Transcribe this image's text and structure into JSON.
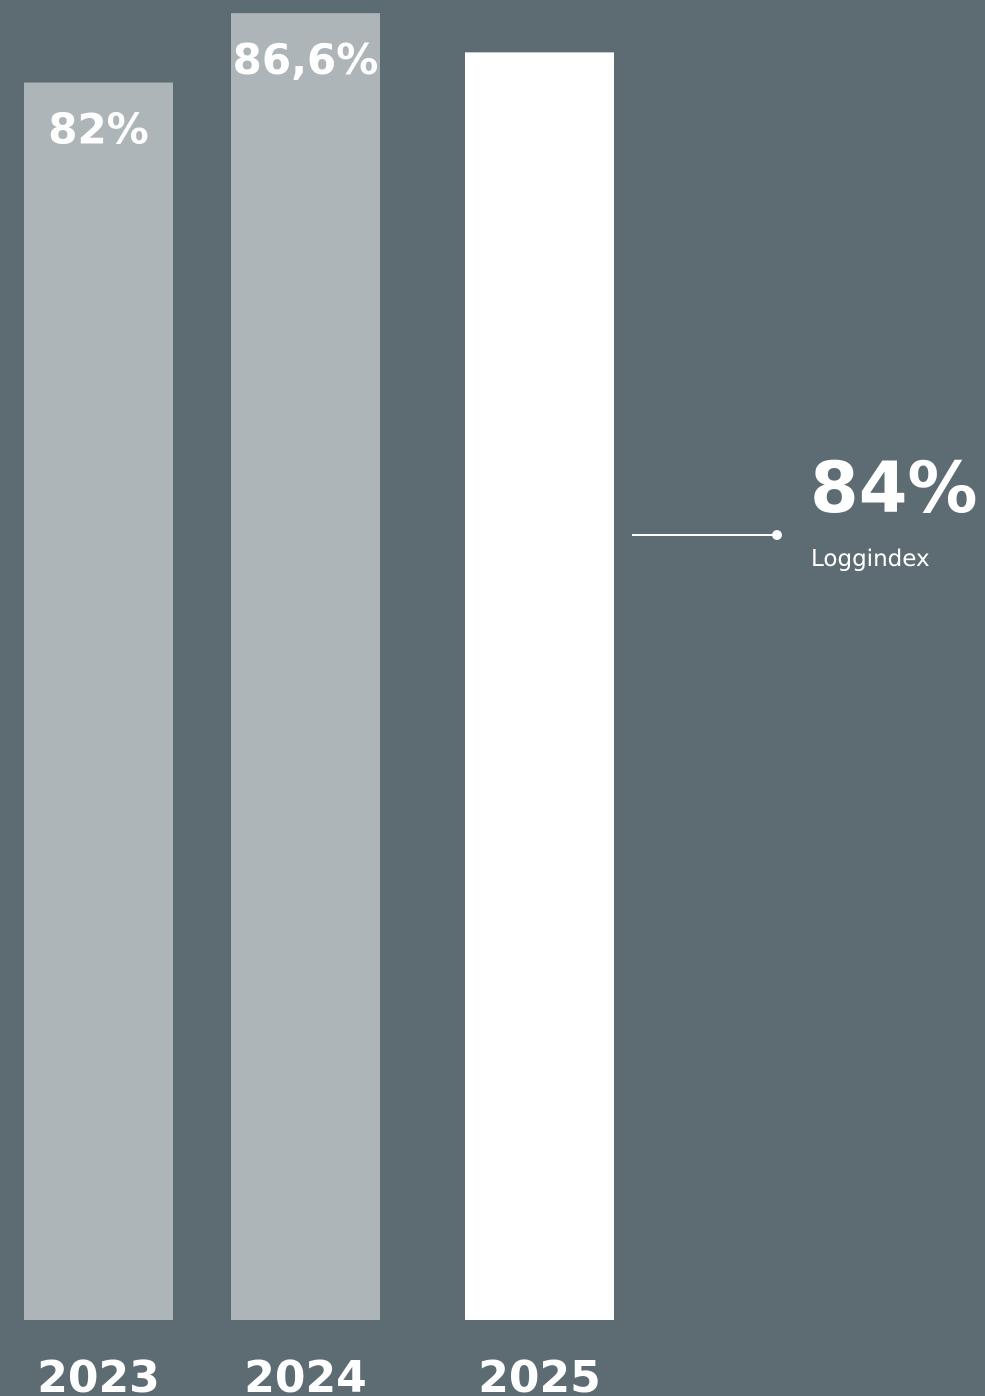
{
  "colors": {
    "background": "#5d6c73",
    "past_bar": "#adb5b8",
    "current_bar": "#ffffff",
    "text": "#ffffff"
  },
  "chart_data": {
    "type": "bar",
    "categories": [
      "2023",
      "2024",
      "2025"
    ],
    "values": [
      82,
      86.6,
      84
    ],
    "value_labels": [
      "82%",
      "86,6%",
      ""
    ],
    "bar_colors": [
      "#adb5b8",
      "#adb5b8",
      "#ffffff"
    ],
    "ylim": [
      0,
      88
    ],
    "grid": false,
    "title": "",
    "xlabel": "",
    "ylabel": "",
    "callout": {
      "value": "84%",
      "label": "Loggindex"
    }
  }
}
